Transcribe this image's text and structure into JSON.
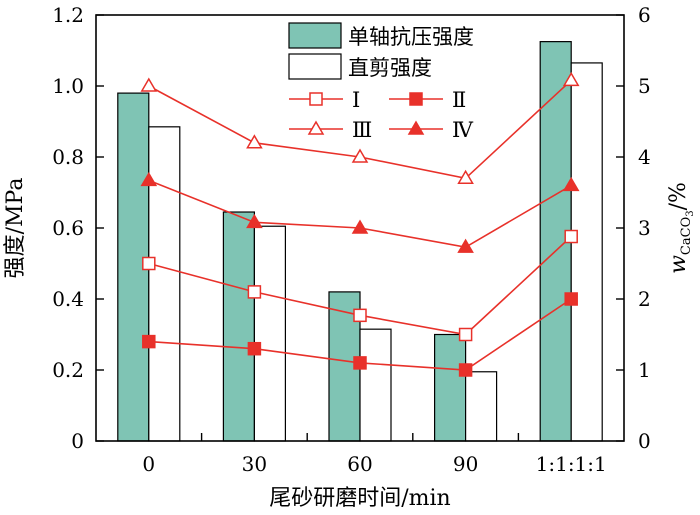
{
  "chart_data": {
    "type": "bar",
    "xlabel": "尾砂研磨时间/min",
    "ylabel": "强度/MPa",
    "y2label_main": "w",
    "y2label_sub": "CaCO",
    "y2label_subsub": "3",
    "y2label_unit": "/%",
    "categories": [
      "0",
      "30",
      "60",
      "90",
      "1:1:1:1"
    ],
    "ylim": [
      0,
      1.2
    ],
    "y2lim": [
      0,
      6
    ],
    "yticks": [
      "0",
      "0.2",
      "0.4",
      "0.6",
      "0.8",
      "1.0",
      "1.2"
    ],
    "y2ticks": [
      "0",
      "1",
      "2",
      "3",
      "4",
      "5",
      "6"
    ],
    "bar_series": [
      {
        "name": "单轴抗压强度",
        "values": [
          0.98,
          0.645,
          0.42,
          0.3,
          1.125
        ],
        "fill": "#7fc4b4"
      },
      {
        "name": "直剪强度",
        "values": [
          0.885,
          0.605,
          0.315,
          0.195,
          1.065
        ],
        "fill": "#ffffff"
      }
    ],
    "line_series": [
      {
        "name": "Ⅰ",
        "marker": "square-open",
        "values": [
          2.5,
          2.1,
          1.77,
          1.5,
          2.88
        ]
      },
      {
        "name": "Ⅱ",
        "marker": "square-filled",
        "values": [
          1.4,
          1.3,
          1.1,
          1.0,
          2.0
        ]
      },
      {
        "name": "Ⅲ",
        "marker": "triangle-open",
        "values": [
          5.0,
          4.2,
          4.0,
          3.7,
          5.08
        ]
      },
      {
        "name": "Ⅳ",
        "marker": "triangle-filled",
        "values": [
          3.67,
          3.08,
          3.0,
          2.73,
          3.6
        ]
      }
    ],
    "line_color": "#e8312a",
    "legend_position": "top-center"
  }
}
